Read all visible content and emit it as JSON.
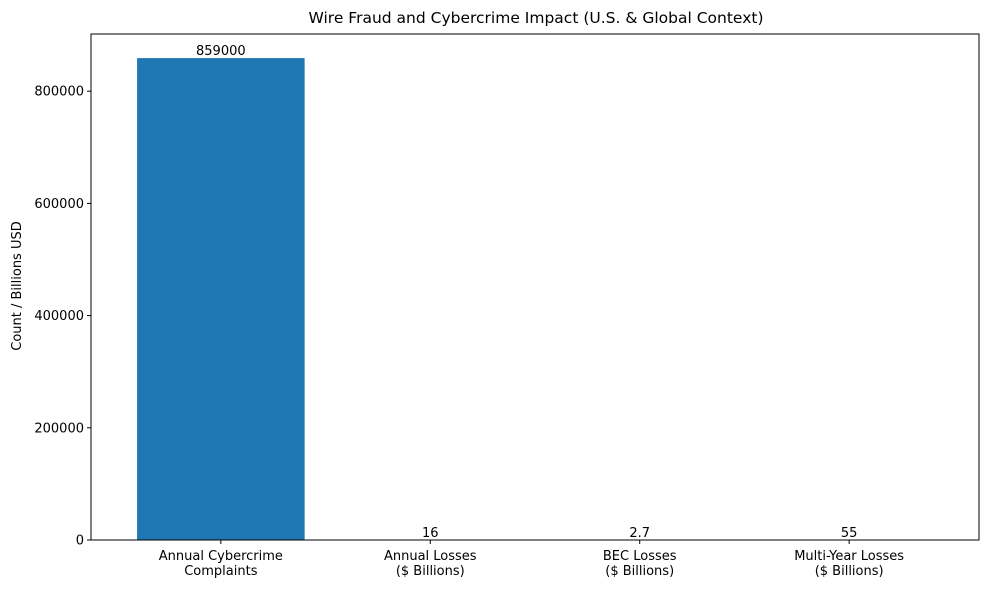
{
  "chart_data": {
    "type": "bar",
    "title": "Wire Fraud and Cybercrime Impact (U.S. & Global Context)",
    "xlabel": "",
    "ylabel": "Count / Billions USD",
    "categories": [
      [
        "Annual Cybercrime",
        "Complaints"
      ],
      [
        "Annual Losses",
        "($ Billions)"
      ],
      [
        "BEC Losses",
        "($ Billions)"
      ],
      [
        "Multi-Year Losses",
        "($ Billions)"
      ]
    ],
    "values": [
      859000,
      16,
      2.7,
      55
    ],
    "value_labels": [
      "859000",
      "16",
      "2.7",
      "55"
    ],
    "ylim": [
      0,
      901950
    ],
    "yticks": [
      0,
      200000,
      400000,
      600000,
      800000
    ],
    "grid": false,
    "bar_color": "#1f77b4"
  }
}
